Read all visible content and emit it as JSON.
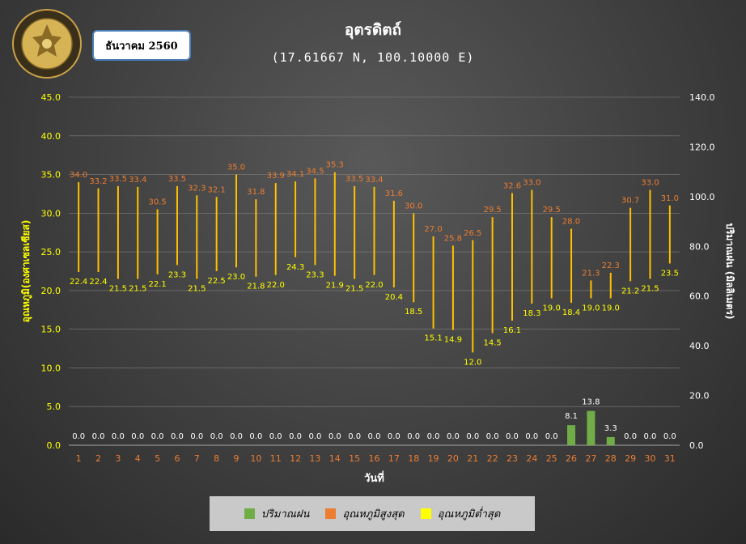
{
  "header": {
    "month_label": "ธันวาคม 2560",
    "station_title": "อุตรดิตถ์",
    "coords": "(17.61667 N, 100.10000 E)"
  },
  "logo": {
    "label": "METEOROLOGICAL DEPARTMENT"
  },
  "legend": {
    "rain_label": "ปริมาณฝน",
    "max_label": "อุณหภูมิสูงสุด",
    "min_label": "อุณหภูมิต่ำสุด"
  },
  "colors": {
    "rain": "#70ad47",
    "max": "#ed7d31",
    "min": "#ffff00",
    "range_line": "#ffc000",
    "left_axis_text": "#ffff00",
    "day_text": "#ed7d31"
  },
  "chart_data": {
    "type": "bar",
    "xlabel": "วันที่",
    "ylabel_left": "อุณหภูมิ(องศาเซลเซียส)",
    "ylabel_right": "ปริมาณฝน (มิลลิเมตร)",
    "ylim_left": [
      0,
      45
    ],
    "ylim_right": [
      0,
      140
    ],
    "yticks_left": [
      "0.0",
      "5.0",
      "10.0",
      "15.0",
      "20.0",
      "25.0",
      "30.0",
      "35.0",
      "40.0",
      "45.0"
    ],
    "yticks_right": [
      "0.0",
      "20.0",
      "40.0",
      "60.0",
      "80.0",
      "100.0",
      "120.0",
      "140.0"
    ],
    "grid": true,
    "legend_position": "bottom",
    "categories": [
      1,
      2,
      3,
      4,
      5,
      6,
      7,
      8,
      9,
      10,
      11,
      12,
      13,
      14,
      15,
      16,
      17,
      18,
      19,
      20,
      21,
      22,
      23,
      24,
      25,
      26,
      27,
      28,
      29,
      30,
      31
    ],
    "series": [
      {
        "name": "อุณหภูมิสูงสุด",
        "axis": "left",
        "values": [
          34.0,
          33.2,
          33.5,
          33.4,
          30.5,
          33.5,
          32.3,
          32.1,
          35.0,
          31.8,
          33.9,
          34.1,
          34.5,
          35.3,
          33.5,
          33.4,
          31.6,
          30.0,
          27.0,
          25.8,
          26.5,
          29.5,
          32.6,
          33.0,
          29.5,
          28.0,
          21.3,
          22.3,
          30.7,
          33.0,
          31.0
        ]
      },
      {
        "name": "อุณหภูมิต่ำสุด",
        "axis": "left",
        "values": [
          22.4,
          22.4,
          21.5,
          21.5,
          22.1,
          23.3,
          21.5,
          22.5,
          23.0,
          21.8,
          22.0,
          24.3,
          23.3,
          21.9,
          21.5,
          22.0,
          20.4,
          18.5,
          15.1,
          14.9,
          12.0,
          14.5,
          16.1,
          18.3,
          19.0,
          18.4,
          19.0,
          19.0,
          21.2,
          21.5,
          23.5
        ]
      },
      {
        "name": "ปริมาณฝน",
        "axis": "right",
        "values": [
          0,
          0,
          0,
          0,
          0,
          0,
          0,
          0,
          0,
          0,
          0,
          0,
          0,
          0,
          0,
          0,
          0,
          0,
          0,
          0,
          0,
          0,
          0,
          0,
          0,
          8.1,
          13.8,
          3.3,
          0,
          0,
          0
        ]
      }
    ]
  }
}
